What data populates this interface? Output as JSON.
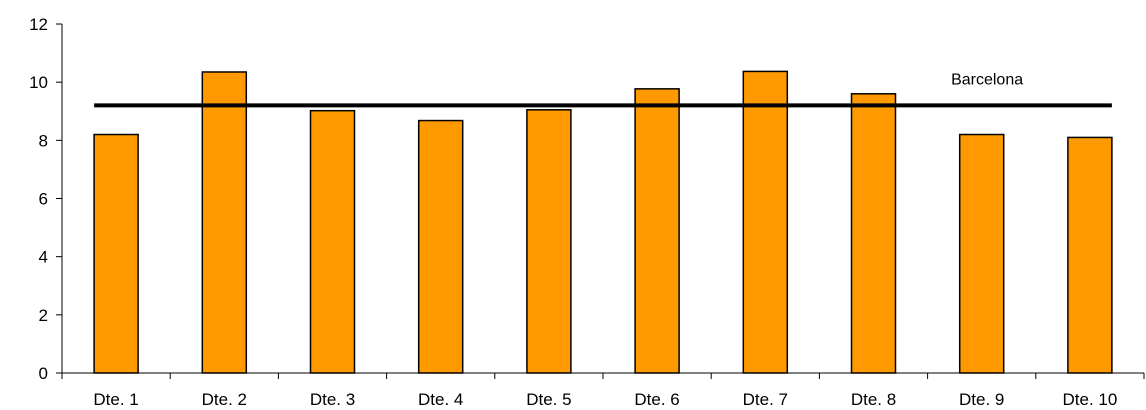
{
  "chart_data": {
    "type": "bar",
    "categories": [
      "Dte. 1",
      "Dte. 2",
      "Dte. 3",
      "Dte. 4",
      "Dte. 5",
      "Dte. 6",
      "Dte. 7",
      "Dte. 8",
      "Dte. 9",
      "Dte. 10"
    ],
    "values": [
      8.2,
      10.35,
      9.02,
      8.68,
      9.05,
      9.77,
      10.37,
      9.6,
      8.2,
      8.1
    ],
    "ylim": [
      0,
      12
    ],
    "yticks": [
      0,
      2,
      4,
      6,
      8,
      10,
      12
    ],
    "grid": false,
    "bar_color": "#FF9900",
    "bar_edge_color": "#000000",
    "reference_line": {
      "label": "Barcelona",
      "value": 9.2,
      "color": "#000000"
    }
  }
}
